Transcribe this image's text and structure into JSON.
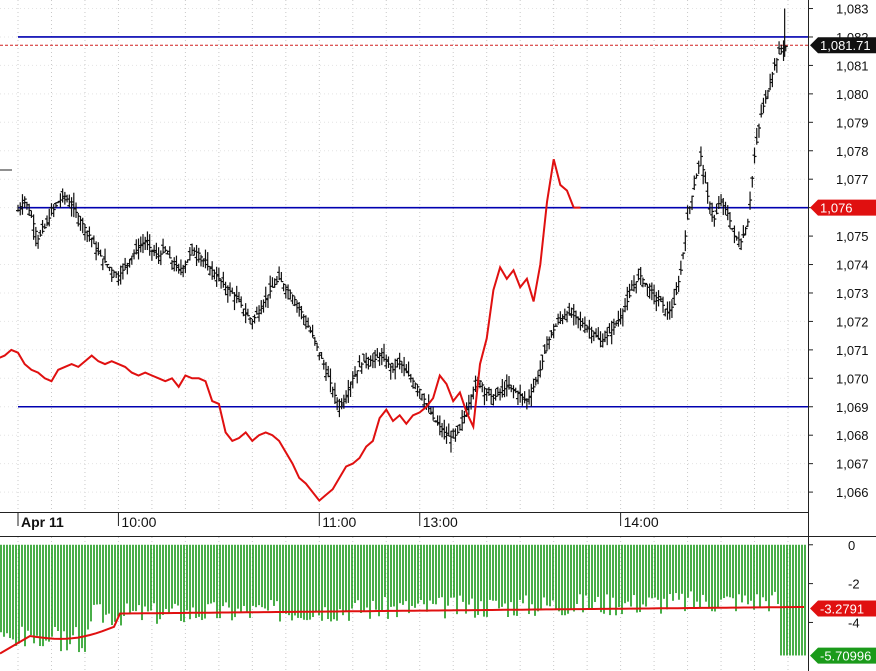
{
  "chart_data": [
    {
      "type": "ohlc",
      "panel": "price",
      "title": "",
      "date_label": "Apr 11",
      "time_labels": [
        {
          "label": "Apr 11",
          "t": 0
        },
        {
          "label": "10:00",
          "t": 30
        },
        {
          "label": "11:00",
          "t": 90
        },
        {
          "label": "13:00",
          "t": 120
        },
        {
          "label": "14:00",
          "t": 180
        }
      ],
      "y_ticks": [
        1066,
        1067,
        1068,
        1069,
        1070,
        1071,
        1072,
        1073,
        1074,
        1075,
        1076,
        1077,
        1078,
        1079,
        1080,
        1081,
        1082,
        1083
      ],
      "ylim": [
        1065.3,
        1083.3
      ],
      "x_range": [
        0,
        230
      ],
      "last_price_label": "1,081.71",
      "last_price": 1081.71,
      "horizontal_levels": [
        1082.0,
        1076.0,
        1069.0
      ],
      "marker_label": "1,076",
      "marker_value": 1076.0,
      "price_series": [
        [
          0,
          1075.9
        ],
        [
          2,
          1076.3
        ],
        [
          4,
          1075.7
        ],
        [
          6,
          1074.9
        ],
        [
          8,
          1075.3
        ],
        [
          10,
          1075.8
        ],
        [
          12,
          1076.2
        ],
        [
          14,
          1076.4
        ],
        [
          16,
          1076.1
        ],
        [
          18,
          1075.7
        ],
        [
          20,
          1075.3
        ],
        [
          22,
          1074.9
        ],
        [
          24,
          1074.4
        ],
        [
          26,
          1074.1
        ],
        [
          28,
          1073.8
        ],
        [
          30,
          1073.6
        ],
        [
          32,
          1073.9
        ],
        [
          34,
          1074.3
        ],
        [
          36,
          1074.6
        ],
        [
          38,
          1074.8
        ],
        [
          40,
          1074.5
        ],
        [
          42,
          1074.3
        ],
        [
          44,
          1074.5
        ],
        [
          46,
          1074.1
        ],
        [
          48,
          1073.8
        ],
        [
          50,
          1074.0
        ],
        [
          52,
          1074.5
        ],
        [
          54,
          1074.4
        ],
        [
          56,
          1074.0
        ],
        [
          58,
          1073.8
        ],
        [
          60,
          1073.5
        ],
        [
          62,
          1073.2
        ],
        [
          64,
          1073.0
        ],
        [
          66,
          1072.7
        ],
        [
          68,
          1072.3
        ],
        [
          70,
          1072.0
        ],
        [
          72,
          1072.4
        ],
        [
          74,
          1072.8
        ],
        [
          76,
          1073.2
        ],
        [
          78,
          1073.5
        ],
        [
          80,
          1073.2
        ],
        [
          82,
          1072.9
        ],
        [
          84,
          1072.5
        ],
        [
          86,
          1072.0
        ],
        [
          88,
          1071.5
        ],
        [
          90,
          1070.9
        ],
        [
          92,
          1070.3
        ],
        [
          94,
          1069.6
        ],
        [
          96,
          1069.0
        ],
        [
          98,
          1069.4
        ],
        [
          100,
          1070.0
        ],
        [
          102,
          1070.4
        ],
        [
          104,
          1070.7
        ],
        [
          106,
          1070.6
        ],
        [
          108,
          1070.8
        ],
        [
          110,
          1070.6
        ],
        [
          112,
          1070.3
        ],
        [
          114,
          1070.6
        ],
        [
          116,
          1070.2
        ],
        [
          118,
          1069.9
        ],
        [
          120,
          1069.6
        ],
        [
          122,
          1069.1
        ],
        [
          124,
          1068.6
        ],
        [
          126,
          1068.3
        ],
        [
          128,
          1068.0
        ],
        [
          130,
          1067.9
        ],
        [
          132,
          1068.2
        ],
        [
          134,
          1068.9
        ],
        [
          136,
          1069.6
        ],
        [
          138,
          1069.9
        ],
        [
          140,
          1069.5
        ],
        [
          142,
          1069.3
        ],
        [
          144,
          1069.5
        ],
        [
          146,
          1069.7
        ],
        [
          148,
          1069.6
        ],
        [
          150,
          1069.4
        ],
        [
          152,
          1069.2
        ],
        [
          154,
          1069.7
        ],
        [
          156,
          1070.3
        ],
        [
          158,
          1071.2
        ],
        [
          160,
          1071.7
        ],
        [
          162,
          1072.1
        ],
        [
          164,
          1072.3
        ],
        [
          166,
          1072.2
        ],
        [
          168,
          1072.0
        ],
        [
          170,
          1071.8
        ],
        [
          172,
          1071.6
        ],
        [
          174,
          1071.3
        ],
        [
          176,
          1071.5
        ],
        [
          178,
          1071.8
        ],
        [
          180,
          1072.2
        ],
        [
          182,
          1072.7
        ],
        [
          184,
          1073.3
        ],
        [
          186,
          1073.6
        ],
        [
          188,
          1073.2
        ],
        [
          190,
          1072.9
        ],
        [
          192,
          1072.7
        ],
        [
          194,
          1072.3
        ],
        [
          196,
          1072.6
        ],
        [
          198,
          1073.8
        ],
        [
          200,
          1075.6
        ],
        [
          202,
          1076.8
        ],
        [
          204,
          1077.8
        ],
        [
          206,
          1076.4
        ],
        [
          208,
          1075.6
        ],
        [
          210,
          1076.2
        ],
        [
          212,
          1075.8
        ],
        [
          214,
          1075.0
        ],
        [
          216,
          1074.8
        ],
        [
          218,
          1075.5
        ],
        [
          220,
          1077.8
        ],
        [
          222,
          1079.3
        ],
        [
          224,
          1080.1
        ],
        [
          226,
          1081.0
        ],
        [
          228,
          1081.6
        ],
        [
          230,
          1081.7
        ]
      ],
      "overlay_series": {
        "color": "#e01010",
        "values": [
          [
            -9,
            1072.8
          ],
          [
            -8,
            1071.1
          ],
          [
            -6,
            1070.7
          ],
          [
            -4,
            1070.8
          ],
          [
            -2,
            1071.0
          ],
          [
            0,
            1070.9
          ],
          [
            2,
            1070.5
          ],
          [
            4,
            1070.3
          ],
          [
            6,
            1070.2
          ],
          [
            8,
            1070.0
          ],
          [
            10,
            1069.9
          ],
          [
            12,
            1070.3
          ],
          [
            14,
            1070.4
          ],
          [
            16,
            1070.5
          ],
          [
            18,
            1070.4
          ],
          [
            20,
            1070.6
          ],
          [
            22,
            1070.8
          ],
          [
            24,
            1070.6
          ],
          [
            26,
            1070.5
          ],
          [
            28,
            1070.6
          ],
          [
            30,
            1070.5
          ],
          [
            32,
            1070.4
          ],
          [
            34,
            1070.2
          ],
          [
            36,
            1070.1
          ],
          [
            38,
            1070.2
          ],
          [
            40,
            1070.1
          ],
          [
            42,
            1070.0
          ],
          [
            44,
            1069.9
          ],
          [
            46,
            1070.0
          ],
          [
            48,
            1069.7
          ],
          [
            50,
            1070.1
          ],
          [
            52,
            1070.0
          ],
          [
            54,
            1070.0
          ],
          [
            56,
            1069.9
          ],
          [
            58,
            1069.2
          ],
          [
            60,
            1069.1
          ],
          [
            62,
            1068.1
          ],
          [
            64,
            1067.8
          ],
          [
            66,
            1067.9
          ],
          [
            68,
            1068.1
          ],
          [
            70,
            1067.8
          ],
          [
            72,
            1068.0
          ],
          [
            74,
            1068.1
          ],
          [
            76,
            1068.0
          ],
          [
            78,
            1067.8
          ],
          [
            80,
            1067.4
          ],
          [
            82,
            1067.0
          ],
          [
            84,
            1066.5
          ],
          [
            86,
            1066.3
          ],
          [
            88,
            1066.0
          ],
          [
            90,
            1065.7
          ],
          [
            92,
            1065.9
          ],
          [
            94,
            1066.1
          ],
          [
            96,
            1066.5
          ],
          [
            98,
            1066.9
          ],
          [
            100,
            1067.0
          ],
          [
            102,
            1067.2
          ],
          [
            104,
            1067.6
          ],
          [
            106,
            1067.8
          ],
          [
            108,
            1068.6
          ],
          [
            110,
            1068.9
          ],
          [
            112,
            1068.5
          ],
          [
            114,
            1068.7
          ],
          [
            116,
            1068.4
          ],
          [
            118,
            1068.7
          ],
          [
            120,
            1068.8
          ],
          [
            122,
            1069.0
          ],
          [
            124,
            1069.3
          ],
          [
            126,
            1070.1
          ],
          [
            128,
            1069.8
          ],
          [
            130,
            1069.2
          ],
          [
            132,
            1069.5
          ],
          [
            134,
            1068.8
          ],
          [
            136,
            1068.3
          ],
          [
            138,
            1070.5
          ],
          [
            140,
            1071.4
          ],
          [
            142,
            1073.1
          ],
          [
            144,
            1073.9
          ],
          [
            146,
            1073.5
          ],
          [
            148,
            1073.8
          ],
          [
            150,
            1073.2
          ],
          [
            152,
            1073.5
          ],
          [
            154,
            1072.7
          ],
          [
            156,
            1074.0
          ],
          [
            158,
            1076.2
          ],
          [
            160,
            1077.7
          ],
          [
            162,
            1076.8
          ],
          [
            164,
            1076.6
          ],
          [
            166,
            1076.0
          ]
        ]
      }
    },
    {
      "type": "bar",
      "panel": "indicator",
      "y_ticks": [
        0,
        -2,
        -4
      ],
      "ylim": [
        -6.5,
        0.4
      ],
      "last_value_label": "-5.70996",
      "last_value": -5.70996,
      "line_label": "-3.2791",
      "line_value": -3.2791,
      "bar_color": "#1a9a1a",
      "line_color": "#e01010"
    }
  ],
  "colors": {
    "level_line": "#0000b0",
    "dashed_price_line": "#d02020",
    "marker_box": "#e01010",
    "price_box": "#111111",
    "indicator_box": "#1a9a1a",
    "grid": "#c8c8c8"
  }
}
